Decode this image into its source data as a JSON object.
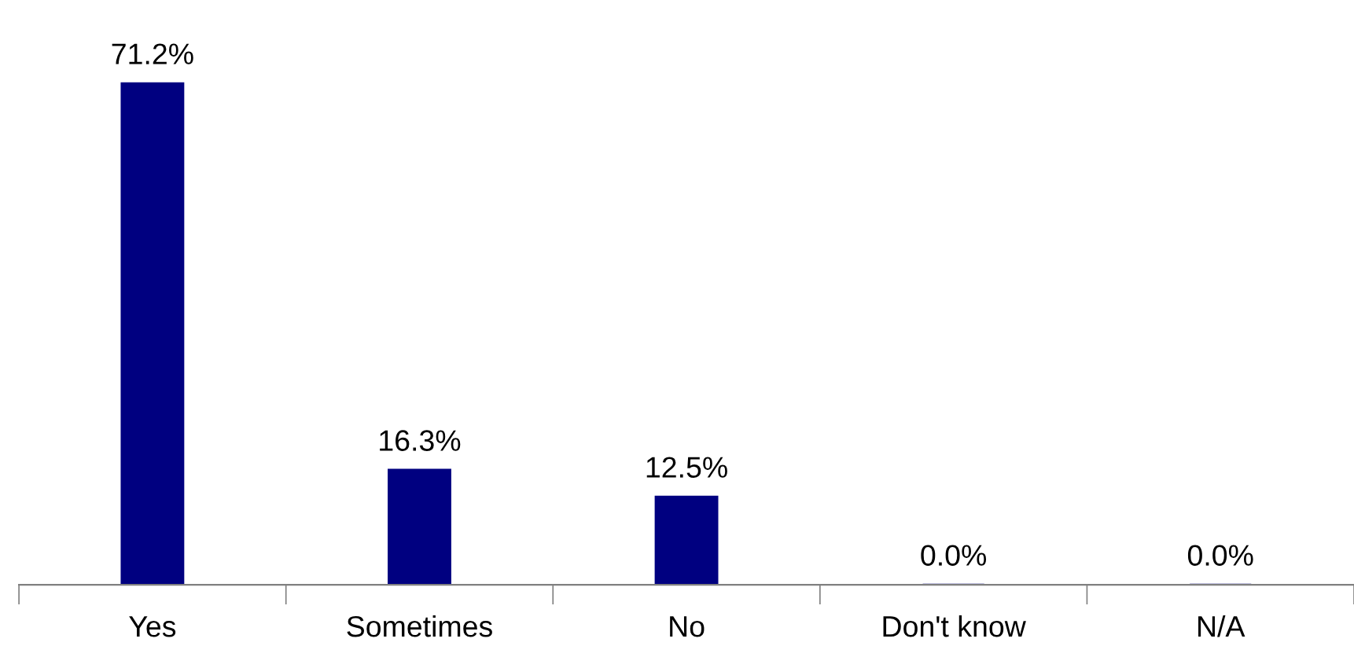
{
  "chart_data": {
    "type": "bar",
    "categories": [
      "Yes",
      "Sometimes",
      "No",
      "Don't know",
      "N/A"
    ],
    "values": [
      71.2,
      16.3,
      12.5,
      0.0,
      0.0
    ],
    "value_labels": [
      "71.2%",
      "16.3%",
      "12.5%",
      "0.0%",
      "0.0%"
    ],
    "color": "#000080"
  }
}
